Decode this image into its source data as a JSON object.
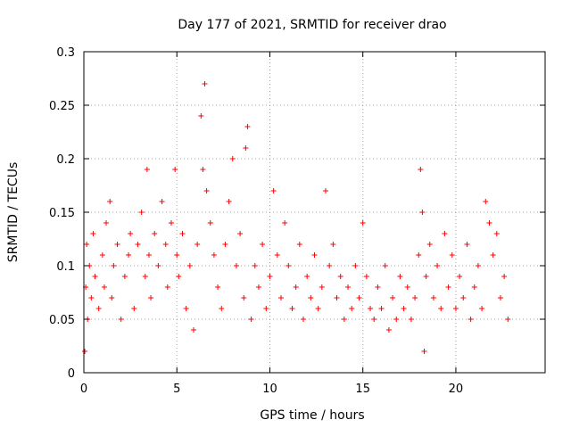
{
  "chart_data": {
    "type": "scatter",
    "title": "Day 177 of 2021, SRMTID for receiver drao",
    "xlabel": "GPS time / hours",
    "ylabel": "SRMTID / TECUs",
    "xlim": [
      0,
      24.8
    ],
    "ylim": [
      0,
      0.3
    ],
    "xticks": [
      0,
      5,
      10,
      15,
      20
    ],
    "xtick_labels": [
      "0",
      "5",
      "10",
      "15",
      "20"
    ],
    "yticks": [
      0,
      0.05,
      0.1,
      0.15,
      0.2,
      0.25,
      0.3
    ],
    "ytick_labels": [
      "0",
      "0.05",
      "0.1",
      "0.15",
      "0.2",
      "0.25",
      "0.3"
    ],
    "grid": true,
    "marker": "+",
    "series": [
      {
        "name": "SRMTID",
        "color": "#ff0000",
        "x": [
          0.05,
          0.1,
          0.15,
          0.2,
          0.3,
          0.4,
          0.5,
          0.6,
          0.8,
          1.0,
          1.1,
          1.2,
          1.4,
          1.5,
          1.6,
          1.8,
          2.0,
          2.2,
          2.4,
          2.5,
          2.7,
          2.9,
          3.1,
          3.3,
          3.4,
          3.5,
          3.6,
          3.8,
          4.0,
          4.2,
          4.4,
          4.5,
          4.7,
          4.9,
          5.0,
          5.1,
          5.3,
          5.5,
          5.7,
          5.9,
          6.1,
          6.3,
          6.4,
          6.5,
          6.6,
          6.8,
          7.0,
          7.2,
          7.4,
          7.6,
          7.8,
          8.0,
          8.2,
          8.4,
          8.6,
          8.7,
          8.8,
          9.0,
          9.2,
          9.4,
          9.6,
          9.8,
          10.0,
          10.2,
          10.4,
          10.6,
          10.8,
          11.0,
          11.2,
          11.4,
          11.6,
          11.8,
          12.0,
          12.2,
          12.4,
          12.6,
          12.8,
          13.0,
          13.2,
          13.4,
          13.6,
          13.8,
          14.0,
          14.2,
          14.4,
          14.6,
          14.8,
          15.0,
          15.2,
          15.4,
          15.6,
          15.8,
          16.0,
          16.2,
          16.4,
          16.6,
          16.8,
          17.0,
          17.2,
          17.4,
          17.6,
          17.8,
          18.0,
          18.1,
          18.2,
          18.3,
          18.4,
          18.6,
          18.8,
          19.0,
          19.2,
          19.4,
          19.6,
          19.8,
          20.0,
          20.2,
          20.4,
          20.6,
          20.8,
          21.0,
          21.2,
          21.4,
          21.6,
          21.8,
          22.0,
          22.2,
          22.4,
          22.6,
          22.8
        ],
        "y": [
          0.02,
          0.08,
          0.12,
          0.05,
          0.1,
          0.07,
          0.13,
          0.09,
          0.06,
          0.11,
          0.08,
          0.14,
          0.16,
          0.07,
          0.1,
          0.12,
          0.05,
          0.09,
          0.11,
          0.13,
          0.06,
          0.12,
          0.15,
          0.09,
          0.19,
          0.11,
          0.07,
          0.13,
          0.1,
          0.16,
          0.12,
          0.08,
          0.14,
          0.19,
          0.11,
          0.09,
          0.13,
          0.06,
          0.1,
          0.04,
          0.12,
          0.24,
          0.19,
          0.27,
          0.17,
          0.14,
          0.11,
          0.08,
          0.06,
          0.12,
          0.16,
          0.2,
          0.1,
          0.13,
          0.07,
          0.21,
          0.23,
          0.05,
          0.1,
          0.08,
          0.12,
          0.06,
          0.09,
          0.17,
          0.11,
          0.07,
          0.14,
          0.1,
          0.06,
          0.08,
          0.12,
          0.05,
          0.09,
          0.07,
          0.11,
          0.06,
          0.08,
          0.17,
          0.1,
          0.12,
          0.07,
          0.09,
          0.05,
          0.08,
          0.06,
          0.1,
          0.07,
          0.14,
          0.09,
          0.06,
          0.05,
          0.08,
          0.06,
          0.1,
          0.04,
          0.07,
          0.05,
          0.09,
          0.06,
          0.08,
          0.05,
          0.07,
          0.11,
          0.19,
          0.15,
          0.02,
          0.09,
          0.12,
          0.07,
          0.1,
          0.06,
          0.13,
          0.08,
          0.11,
          0.06,
          0.09,
          0.07,
          0.12,
          0.05,
          0.08,
          0.1,
          0.06,
          0.16,
          0.14,
          0.11,
          0.13,
          0.07,
          0.09,
          0.05
        ]
      }
    ]
  }
}
